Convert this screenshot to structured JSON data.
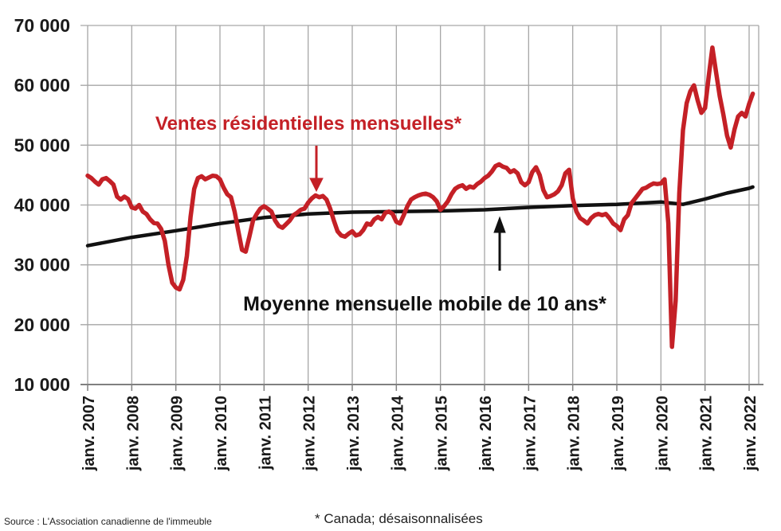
{
  "chart_data": {
    "type": "line",
    "title": "",
    "x_axis": {
      "unit": "month",
      "start": "janv. 2007",
      "end": "févr. 2022",
      "tick_labels": [
        "janv. 2007",
        "janv. 2008",
        "janv. 2009",
        "janv. 2010",
        "janv. 2011",
        "janv. 2012",
        "janv. 2013",
        "janv. 2014",
        "janv. 2015",
        "janv. 2016",
        "janv. 2017",
        "janv. 2018",
        "janv. 2019",
        "janv. 2020",
        "janv. 2021",
        "janv. 2022"
      ]
    },
    "y_axis": {
      "min": 10000,
      "max": 70000,
      "step": 10000,
      "tick_labels": [
        "70 000",
        "60 000",
        "50 000",
        "40 000",
        "30 000",
        "20 000",
        "10 000"
      ]
    },
    "grid": true,
    "legend_position": "in-plot annotations with arrows",
    "series": [
      {
        "name": "Ventes résidentielles mensuelles*",
        "color": "#C42026",
        "frequency": "monthly",
        "start": "janv. 2007",
        "values": [
          44900,
          44500,
          43900,
          43400,
          44300,
          44500,
          44000,
          43400,
          41400,
          40900,
          41400,
          41000,
          39600,
          39400,
          40000,
          38900,
          38500,
          37600,
          37000,
          36900,
          36000,
          34000,
          30000,
          27000,
          26200,
          25900,
          27500,
          31500,
          38000,
          42700,
          44500,
          44800,
          44300,
          44600,
          44900,
          44800,
          44300,
          42900,
          41800,
          41300,
          38900,
          35600,
          32500,
          32200,
          34700,
          37400,
          38500,
          39400,
          39800,
          39400,
          38900,
          37400,
          36500,
          36200,
          36800,
          37400,
          38300,
          38700,
          39200,
          39400,
          40400,
          41100,
          41600,
          41300,
          41500,
          40900,
          39400,
          37400,
          35600,
          34900,
          34700,
          35200,
          35600,
          34900,
          35100,
          35800,
          36900,
          36700,
          37600,
          38000,
          37600,
          38700,
          38900,
          38500,
          37200,
          36900,
          38300,
          39800,
          40900,
          41300,
          41600,
          41800,
          41900,
          41700,
          41300,
          40600,
          39200,
          39800,
          40600,
          41800,
          42700,
          43100,
          43300,
          42700,
          43100,
          42900,
          43500,
          43900,
          44500,
          44900,
          45600,
          46500,
          46800,
          46400,
          46200,
          45500,
          45800,
          45300,
          43800,
          43300,
          43800,
          45500,
          46300,
          45000,
          42500,
          41300,
          41500,
          41800,
          42300,
          43300,
          45300,
          45900,
          41100,
          38900,
          37800,
          37400,
          36900,
          37800,
          38300,
          38500,
          38300,
          38500,
          37800,
          36900,
          36500,
          35800,
          37600,
          38300,
          40300,
          41100,
          41900,
          42700,
          42900,
          43300,
          43600,
          43500,
          43600,
          44300,
          37000,
          16300,
          24000,
          42000,
          52500,
          57000,
          59000,
          60000,
          57500,
          55400,
          56200,
          61500,
          66300,
          62200,
          58200,
          55100,
          51600,
          49600,
          52600,
          54800,
          55400,
          54800,
          56900,
          58600
        ]
      },
      {
        "name": "Moyenne mensuelle mobile de 10 ans*",
        "color": "#111111",
        "frequency": "breakpoints (month index from janv. 2007, value)",
        "points": [
          [
            0,
            33200
          ],
          [
            12,
            34600
          ],
          [
            24,
            35700
          ],
          [
            36,
            36900
          ],
          [
            48,
            37900
          ],
          [
            60,
            38500
          ],
          [
            72,
            38800
          ],
          [
            84,
            38900
          ],
          [
            96,
            39000
          ],
          [
            108,
            39200
          ],
          [
            120,
            39600
          ],
          [
            132,
            39900
          ],
          [
            144,
            40100
          ],
          [
            156,
            40500
          ],
          [
            162,
            40100
          ],
          [
            168,
            41000
          ],
          [
            174,
            42000
          ],
          [
            180,
            42800
          ],
          [
            181,
            43000
          ]
        ]
      }
    ],
    "annotations": [
      {
        "text": "Ventes résidentielles mensuelles*",
        "color": "#C42026",
        "arrow": "down",
        "points_to": "red monthly sales line near janv. 2012"
      },
      {
        "text": "Moyenne mensuelle mobile de 10 ans*",
        "color": "#111111",
        "arrow": "up",
        "points_to": "black 10-year moving average line near 2016"
      }
    ]
  },
  "footer": {
    "source": "Source : L'Association canadienne de l'immeuble",
    "note": "* Canada; désaisonnalisées"
  },
  "colors": {
    "sales_line": "#C42026",
    "average_line": "#111111",
    "grid": "#A6A6A6",
    "axis": "#808080",
    "text": "#1A1A1A",
    "background": "#FFFFFF"
  }
}
